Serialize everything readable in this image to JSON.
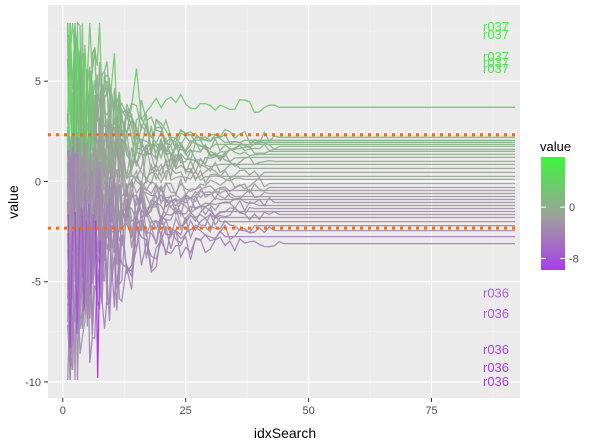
{
  "chart_data": {
    "type": "line",
    "xlabel": "idxSearch",
    "ylabel": "value",
    "xlim": [
      -3,
      93
    ],
    "ylim": [
      -10.8,
      8.8
    ],
    "x_ticks": [
      0,
      25,
      50,
      75
    ],
    "y_ticks": [
      5,
      0,
      -5,
      -10
    ],
    "x_tick_labels": [
      "0",
      "25",
      "50",
      "75"
    ],
    "y_tick_labels": [
      "5",
      "0",
      "-5",
      "-10"
    ],
    "grid": true,
    "background": "#ebebeb",
    "hlines": [
      {
        "y": 2.33,
        "color": "#ff6a00",
        "style": "dotted"
      },
      {
        "y": -2.33,
        "color": "#ff6a00",
        "style": "dotted"
      }
    ],
    "color_scale": {
      "low": "#a93ce8",
      "mid": "#9e9e9e",
      "high": "#3df53d",
      "range": [
        -9.8,
        7.8
      ]
    },
    "legend": {
      "title": "value",
      "placement": "right",
      "ticks": [
        0,
        -8
      ],
      "tick_labels": [
        "0",
        "-8"
      ]
    },
    "x_range": [
      1,
      92
    ],
    "final_values": [
      3.7,
      2.2,
      2.05,
      1.95,
      1.85,
      1.75,
      1.6,
      1.5,
      1.35,
      1.2,
      1.0,
      0.85,
      0.65,
      0.45,
      0.25,
      0.1,
      -0.1,
      -0.3,
      -0.45,
      -0.6,
      -0.75,
      -0.9,
      -1.05,
      -1.2,
      -1.35,
      -1.5,
      -1.65,
      -1.8,
      -2.0,
      -2.2,
      -2.45,
      -2.75,
      -3.1
    ],
    "end_labels": [
      {
        "text": "r037",
        "y": 7.7
      },
      {
        "text": "r037",
        "y": 7.3
      },
      {
        "text": "r037",
        "y": 6.2
      },
      {
        "text": "r037",
        "y": 5.9
      },
      {
        "text": "r037",
        "y": 5.6
      },
      {
        "text": "r036",
        "y": -5.6
      },
      {
        "text": "r036",
        "y": -6.6
      },
      {
        "text": "r036",
        "y": -8.4
      },
      {
        "text": "r036",
        "y": -9.3
      },
      {
        "text": "r036",
        "y": -10.0
      }
    ]
  }
}
